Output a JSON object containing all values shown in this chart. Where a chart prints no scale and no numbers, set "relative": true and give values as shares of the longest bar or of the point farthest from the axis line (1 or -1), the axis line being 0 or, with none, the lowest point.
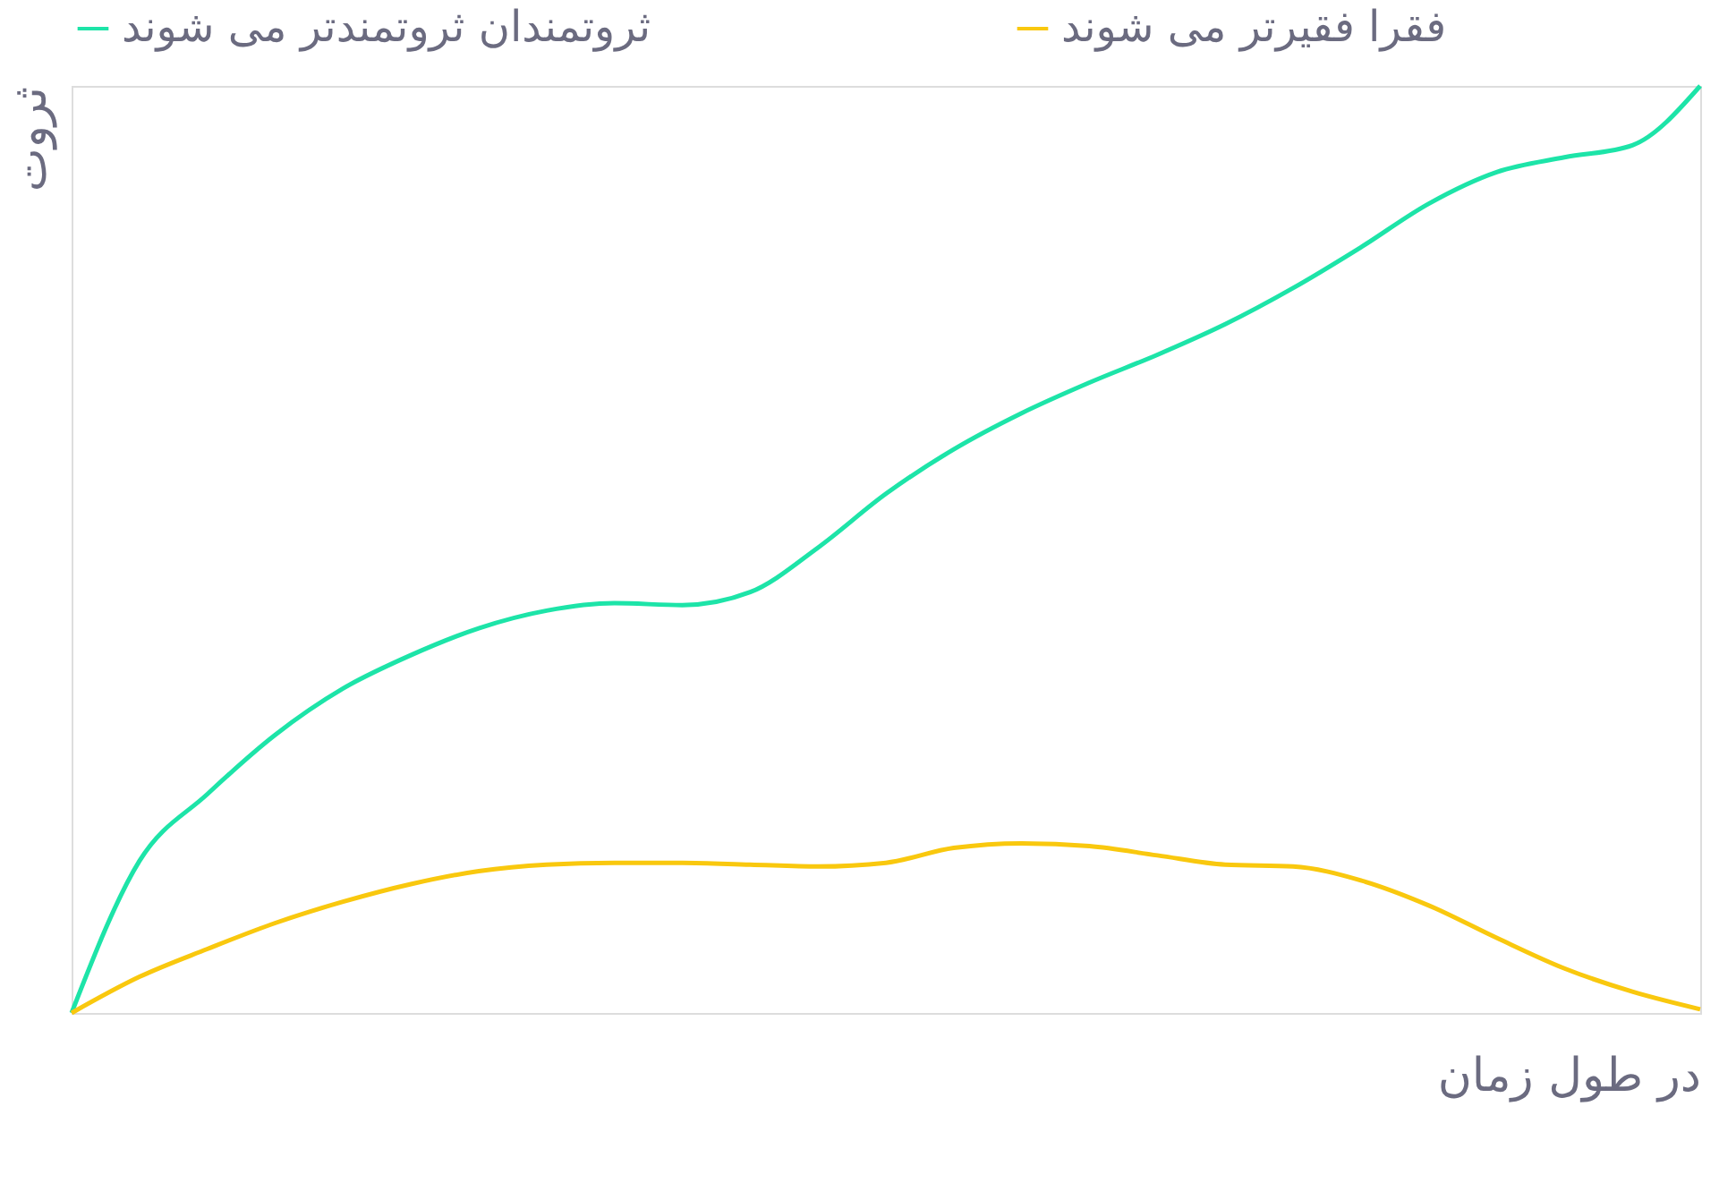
{
  "chart_data": {
    "type": "line",
    "relative": true,
    "xlabel": "در طول زمان",
    "ylabel": "ثروت",
    "legend": "top",
    "tick_labels": false,
    "grid": false,
    "marker": "none",
    "line_style": "solid",
    "categories": [
      null,
      null,
      null,
      null,
      null,
      null,
      null,
      null,
      null,
      null,
      null,
      null,
      null,
      null,
      null,
      null,
      null,
      null,
      null,
      null,
      null,
      null,
      null,
      null,
      null
    ],
    "series": [
      {
        "name": "ثروتمندان ثروتمندتر می شوند",
        "color": "#1de4a8",
        "values": [
          0,
          0.164,
          0.236,
          0.3,
          0.35,
          0.386,
          0.415,
          0.434,
          0.442,
          0.44,
          0.454,
          0.502,
          0.56,
          0.608,
          0.647,
          0.68,
          0.71,
          0.743,
          0.782,
          0.826,
          0.873,
          0.907,
          0.923,
          0.936,
          1
        ]
      },
      {
        "name": "فقرا فقیرتر می شوند",
        "color": "#f9c80e",
        "values": [
          0,
          0.039,
          0.069,
          0.097,
          0.12,
          0.139,
          0.153,
          0.16,
          0.162,
          0.162,
          0.16,
          0.158,
          0.162,
          0.178,
          0.183,
          0.18,
          0.17,
          0.16,
          0.158,
          0.143,
          0.116,
          0.081,
          0.048,
          0.023,
          0.004
        ]
      }
    ]
  }
}
